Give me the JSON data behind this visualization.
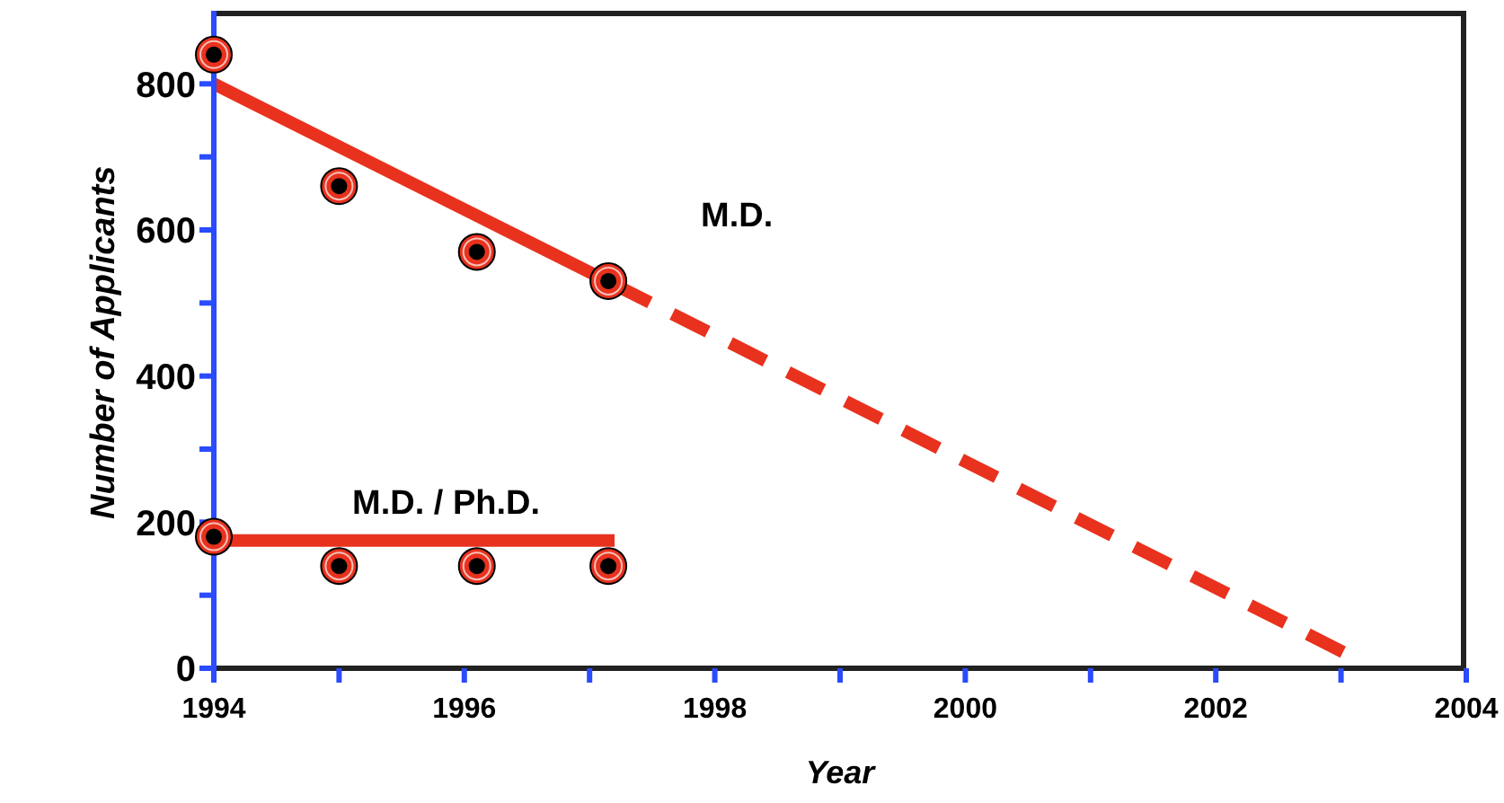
{
  "chart_data": {
    "type": "scatter",
    "xlabel": "Year",
    "ylabel": "Number of Applicants",
    "xlim": [
      1994,
      2004
    ],
    "ylim": [
      0,
      900
    ],
    "xticks": [
      1994,
      {
        "value": 1995,
        "label": null
      },
      1996,
      {
        "value": 1997,
        "label": null
      },
      1998,
      {
        "value": 1999,
        "label": null
      },
      2000,
      {
        "value": 2001,
        "label": null
      },
      2002,
      {
        "value": 2003,
        "label": null
      },
      2004
    ],
    "yticks": [
      0,
      {
        "value": 100,
        "label": null
      },
      200,
      {
        "value": 300,
        "label": null
      },
      400,
      {
        "value": 500,
        "label": null
      },
      600,
      {
        "value": 700,
        "label": null
      },
      800
    ],
    "grid": false,
    "series": [
      {
        "type": "line",
        "color": "#e8321e",
        "line_style": "solid",
        "marker": "none",
        "x": [
          1994,
          1997.2
        ],
        "values": [
          800,
          525
        ]
      },
      {
        "type": "line",
        "color": "#e8321e",
        "line_style": "dashed",
        "marker": "none",
        "x": [
          1997.2,
          2003.1
        ],
        "values": [
          525,
          15
        ]
      },
      {
        "type": "line",
        "color": "#e8321e",
        "line_style": "solid",
        "marker": "none",
        "x": [
          1994,
          1997.2
        ],
        "values": [
          175,
          175
        ]
      },
      {
        "color": "#e8321e",
        "marker": "circle",
        "x": [
          1994,
          1995,
          1996.1,
          1997.15
        ],
        "values": [
          840,
          660,
          570,
          530
        ]
      },
      {
        "color": "#e8321e",
        "marker": "circle",
        "x": [
          1994,
          1995,
          1996.1,
          1997.15
        ],
        "values": [
          180,
          140,
          140,
          140
        ]
      }
    ],
    "annotations": [
      "M.D.",
      "M.D. / Ph.D."
    ]
  }
}
